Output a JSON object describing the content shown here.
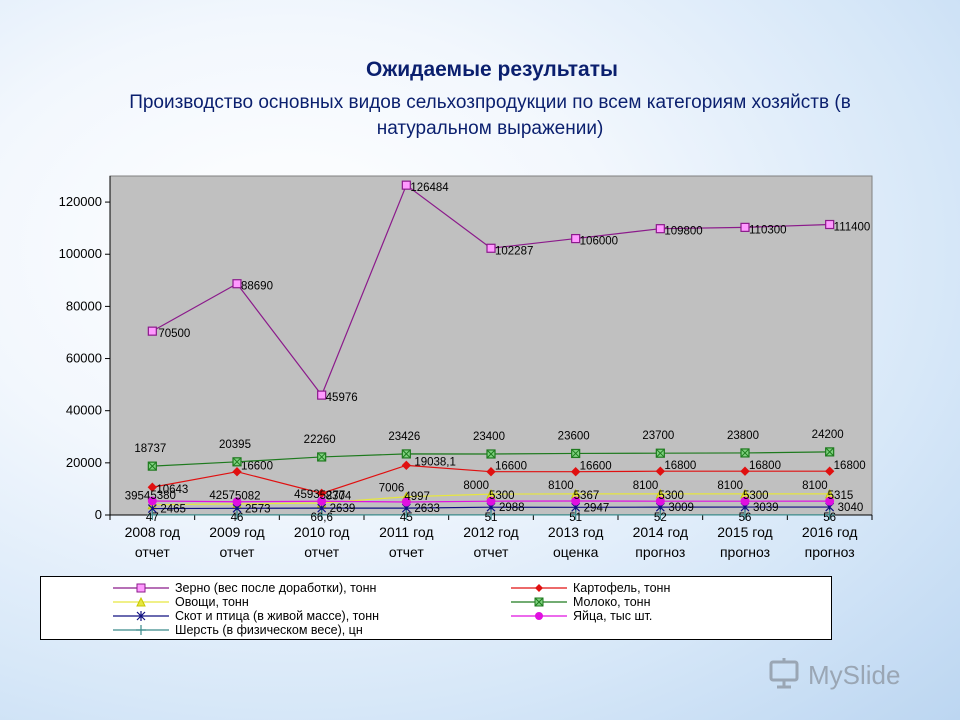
{
  "header": {
    "title": "Ожидаемые результаты",
    "subtitle": "Производство основных видов сельхозпродукции по всем категориям хозяйств (в натуральном выражении)"
  },
  "logo": {
    "text": "MySlide",
    "icon": "slide-logo-icon"
  },
  "chart_data": {
    "type": "line",
    "ylim": [
      0,
      130000
    ],
    "yticks": [
      0,
      20000,
      40000,
      60000,
      80000,
      100000,
      120000
    ],
    "ytick_labels": [
      "0",
      "20000",
      "40000",
      "60000",
      "80000",
      "100000",
      "120000"
    ],
    "categories": [
      [
        "2008 год",
        "отчет"
      ],
      [
        "2009 год",
        "отчет"
      ],
      [
        "2010 год",
        "отчет"
      ],
      [
        "2011 год",
        "отчет"
      ],
      [
        "2012 год",
        "отчет"
      ],
      [
        "2013 год",
        "оценка"
      ],
      [
        "2014 год",
        "прогноз"
      ],
      [
        "2015 год",
        "прогноз"
      ],
      [
        "2016 год",
        "прогноз"
      ]
    ],
    "grid": false,
    "legend_position": "bottom",
    "series": [
      {
        "name": "Зерно (вес после доработки), тонн",
        "color": "#8b1a8b",
        "marker": "square",
        "values": [
          70500,
          88690,
          45976,
          126484,
          102287,
          106000,
          109800,
          110300,
          111400
        ],
        "labels": [
          "70500",
          "88690",
          "45976",
          "126484",
          "102287",
          "106000",
          "109800",
          "110300",
          "111400"
        ]
      },
      {
        "name": "Картофель, тонн",
        "color": "#e01010",
        "marker": "diamond",
        "values": [
          10643,
          16600,
          8304,
          19038.1,
          16600,
          16600,
          16800,
          16800,
          16800
        ],
        "labels": [
          "10643",
          "16600",
          "8304",
          "19038,1",
          "16600",
          "16600",
          "16800",
          "16800",
          "16800"
        ]
      },
      {
        "name": "Овощи, тонн",
        "color": "#e6e640",
        "marker": "triangle",
        "values": [
          3954,
          4257,
          4593,
          7006,
          8000,
          8100,
          8100,
          8100,
          8100
        ],
        "labels": [
          "3954",
          "4257",
          "4593",
          "7006",
          "8000",
          "8100",
          "8100",
          "8100",
          "8100"
        ]
      },
      {
        "name": "Молоко, тонн",
        "color": "#1e7a1e",
        "marker": "boxx",
        "values": [
          18737,
          20395,
          22260,
          23426,
          23400,
          23600,
          23700,
          23800,
          24200
        ],
        "labels": [
          "18737",
          "20395",
          "22260",
          "23426",
          "23400",
          "23600",
          "23700",
          "23800",
          "24200"
        ]
      },
      {
        "name": "Скот и птица (в живой массе), тонн",
        "color": "#101080",
        "marker": "star",
        "values": [
          2465,
          2573,
          2639,
          2633,
          2988,
          2947,
          3009,
          3039,
          3040
        ],
        "labels": [
          "2465",
          "2573",
          "2639",
          "2633",
          "2988",
          "2947",
          "3009",
          "3039",
          "3040"
        ]
      },
      {
        "name": "Яйца, тыс шт.",
        "color": "#e010e0",
        "marker": "circle",
        "values": [
          5380,
          5082,
          5277,
          4997,
          5300,
          5367,
          5300,
          5300,
          5315
        ],
        "labels": [
          "5380",
          "5082",
          "5277",
          "4997",
          "5300",
          "5367",
          "5300",
          "5300",
          "5315"
        ]
      },
      {
        "name": "Шерсть (в физическом весе), цн",
        "color": "#3a8a8a",
        "marker": "plus",
        "values": [
          47,
          46,
          66.6,
          45,
          51,
          51,
          52,
          56,
          56
        ],
        "labels": [
          "47",
          "46",
          "66,6",
          "45",
          "51",
          "51",
          "52",
          "56",
          "56"
        ]
      }
    ]
  }
}
